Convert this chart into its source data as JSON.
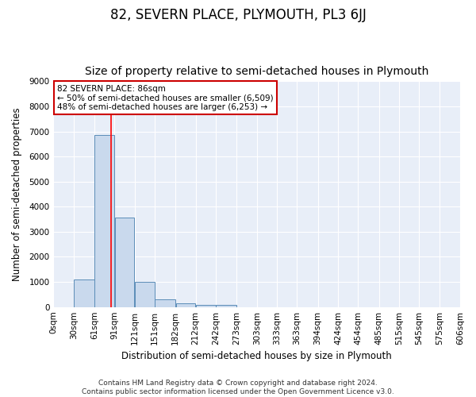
{
  "title": "82, SEVERN PLACE, PLYMOUTH, PL3 6JJ",
  "subtitle": "Size of property relative to semi-detached houses in Plymouth",
  "xlabel": "Distribution of semi-detached houses by size in Plymouth",
  "ylabel": "Number of semi-detached properties",
  "footer_line1": "Contains HM Land Registry data © Crown copyright and database right 2024.",
  "footer_line2": "Contains public sector information licensed under the Open Government Licence v3.0.",
  "annotation_title": "82 SEVERN PLACE: 86sqm",
  "annotation_line1": "← 50% of semi-detached houses are smaller (6,509)",
  "annotation_line2": "48% of semi-detached houses are larger (6,253) →",
  "bin_edges": [
    0,
    30,
    61,
    91,
    121,
    151,
    182,
    212,
    242,
    273,
    303,
    333,
    363,
    394,
    424,
    454,
    485,
    515,
    545,
    575,
    606
  ],
  "bar_heights": [
    0,
    1100,
    6850,
    3570,
    1000,
    320,
    150,
    100,
    90,
    0,
    0,
    0,
    0,
    0,
    0,
    0,
    0,
    0,
    0,
    0
  ],
  "bar_color": "#c9d9ed",
  "bar_edge_color": "#5b8db8",
  "red_line_x": 86,
  "ylim": [
    0,
    9000
  ],
  "yticks": [
    0,
    1000,
    2000,
    3000,
    4000,
    5000,
    6000,
    7000,
    8000,
    9000
  ],
  "background_color": "#ffffff",
  "plot_bg_color": "#e8eef8",
  "grid_color": "#ffffff",
  "annotation_box_color": "#ffffff",
  "annotation_box_edge": "#cc0000",
  "title_fontsize": 12,
  "subtitle_fontsize": 10,
  "axis_label_fontsize": 8.5,
  "tick_fontsize": 7.5,
  "footer_fontsize": 6.5,
  "annotation_fontsize": 7.5
}
